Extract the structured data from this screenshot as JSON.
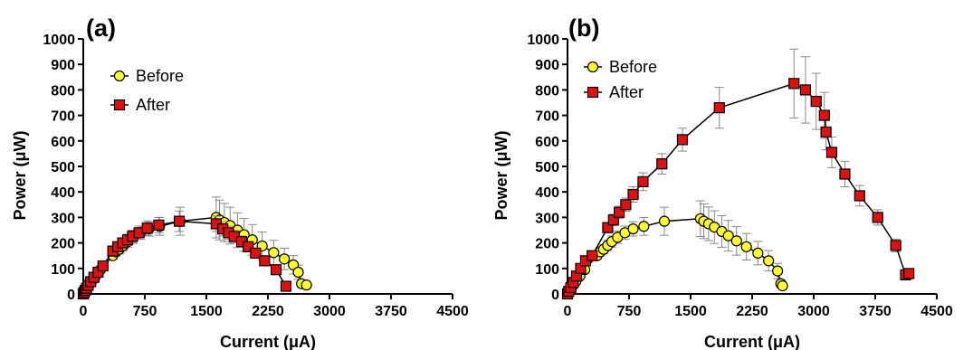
{
  "chart_data": [
    {
      "type": "scatter",
      "panel_label": "(a)",
      "xlabel": "Current  (μA)",
      "ylabel": "Power (μW)",
      "xlim": [
        0,
        4500
      ],
      "ylim": [
        0,
        1000
      ],
      "xticks": [
        0,
        750,
        1500,
        2250,
        3000,
        3750,
        4500
      ],
      "yticks": [
        0,
        100,
        200,
        300,
        400,
        500,
        600,
        700,
        800,
        900,
        1000
      ],
      "legend_position": "top-left",
      "series": [
        {
          "name": "Before",
          "color": "#ffff33",
          "marker": "circle",
          "x": [
            0,
            15,
            30,
            50,
            70,
            100,
            150,
            210,
            360,
            400,
            440,
            490,
            540,
            610,
            700,
            800,
            930,
            1180,
            1620,
            1660,
            1720,
            1790,
            1880,
            1960,
            2060,
            2180,
            2320,
            2450,
            2560,
            2620,
            2660,
            2720
          ],
          "y": [
            0,
            8,
            16,
            26,
            35,
            48,
            70,
            95,
            150,
            165,
            175,
            190,
            205,
            222,
            240,
            255,
            265,
            285,
            300,
            290,
            280,
            268,
            250,
            232,
            212,
            188,
            162,
            137,
            114,
            85,
            40,
            35
          ],
          "yerr": [
            0,
            2,
            3,
            4,
            5,
            6,
            8,
            10,
            15,
            16,
            18,
            20,
            22,
            24,
            26,
            28,
            35,
            55,
            80,
            78,
            75,
            72,
            68,
            64,
            60,
            55,
            48,
            42,
            36,
            28,
            15,
            12
          ]
        },
        {
          "name": "After",
          "color": "#dd1111",
          "marker": "square",
          "x": [
            0,
            10,
            25,
            40,
            60,
            90,
            130,
            180,
            240,
            360,
            420,
            480,
            540,
            600,
            680,
            780,
            920,
            1170,
            1620,
            1700,
            1770,
            1840,
            1930,
            2010,
            2100,
            2210,
            2350,
            2470
          ],
          "y": [
            0,
            6,
            14,
            22,
            34,
            48,
            65,
            85,
            110,
            168,
            185,
            200,
            212,
            226,
            240,
            258,
            270,
            285,
            275,
            255,
            240,
            225,
            205,
            185,
            160,
            130,
            95,
            30
          ],
          "yerr": [
            0,
            2,
            3,
            4,
            5,
            6,
            8,
            10,
            12,
            16,
            18,
            20,
            22,
            24,
            26,
            28,
            30,
            40,
            30,
            28,
            26,
            24,
            22,
            20,
            18,
            15,
            12,
            8
          ]
        }
      ]
    },
    {
      "type": "scatter",
      "panel_label": "(b)",
      "xlabel": "Current  (μA)",
      "ylabel": "Power (μW)",
      "xlim": [
        0,
        4500
      ],
      "ylim": [
        0,
        1000
      ],
      "xticks": [
        0,
        750,
        1500,
        2250,
        3000,
        3750,
        4500
      ],
      "yticks": [
        0,
        100,
        200,
        300,
        400,
        500,
        600,
        700,
        800,
        900,
        1000
      ],
      "legend_position": "top-left",
      "series": [
        {
          "name": "Before",
          "color": "#ffff33",
          "marker": "circle",
          "x": [
            0,
            15,
            30,
            50,
            70,
            100,
            150,
            210,
            360,
            400,
            440,
            490,
            540,
            610,
            700,
            800,
            930,
            1180,
            1620,
            1660,
            1720,
            1790,
            1880,
            1960,
            2060,
            2180,
            2320,
            2450,
            2560,
            2600,
            2620
          ],
          "y": [
            0,
            8,
            16,
            26,
            35,
            48,
            70,
            95,
            150,
            165,
            175,
            190,
            205,
            222,
            240,
            255,
            265,
            285,
            295,
            285,
            275,
            262,
            245,
            228,
            208,
            185,
            160,
            130,
            90,
            40,
            32
          ],
          "yerr": [
            0,
            2,
            3,
            4,
            5,
            6,
            8,
            10,
            15,
            16,
            18,
            20,
            22,
            24,
            26,
            28,
            35,
            55,
            70,
            68,
            66,
            64,
            62,
            60,
            56,
            52,
            46,
            40,
            30,
            15,
            12
          ]
        },
        {
          "name": "After",
          "color": "#dd1111",
          "marker": "square",
          "x": [
            0,
            15,
            40,
            70,
            110,
            160,
            220,
            300,
            490,
            560,
            630,
            710,
            800,
            920,
            1150,
            1400,
            1850,
            2760,
            2900,
            3030,
            3130,
            3150,
            3220,
            3380,
            3560,
            3780,
            4000,
            4120,
            4160
          ],
          "y": [
            0,
            10,
            25,
            45,
            70,
            100,
            130,
            150,
            260,
            290,
            320,
            350,
            390,
            440,
            510,
            605,
            730,
            825,
            800,
            755,
            700,
            635,
            555,
            470,
            385,
            300,
            190,
            75,
            80
          ],
          "yerr": [
            0,
            3,
            5,
            8,
            10,
            12,
            14,
            16,
            20,
            22,
            24,
            26,
            30,
            35,
            40,
            45,
            80,
            135,
            130,
            110,
            90,
            70,
            60,
            50,
            40,
            30,
            25,
            15,
            15
          ]
        }
      ]
    }
  ]
}
